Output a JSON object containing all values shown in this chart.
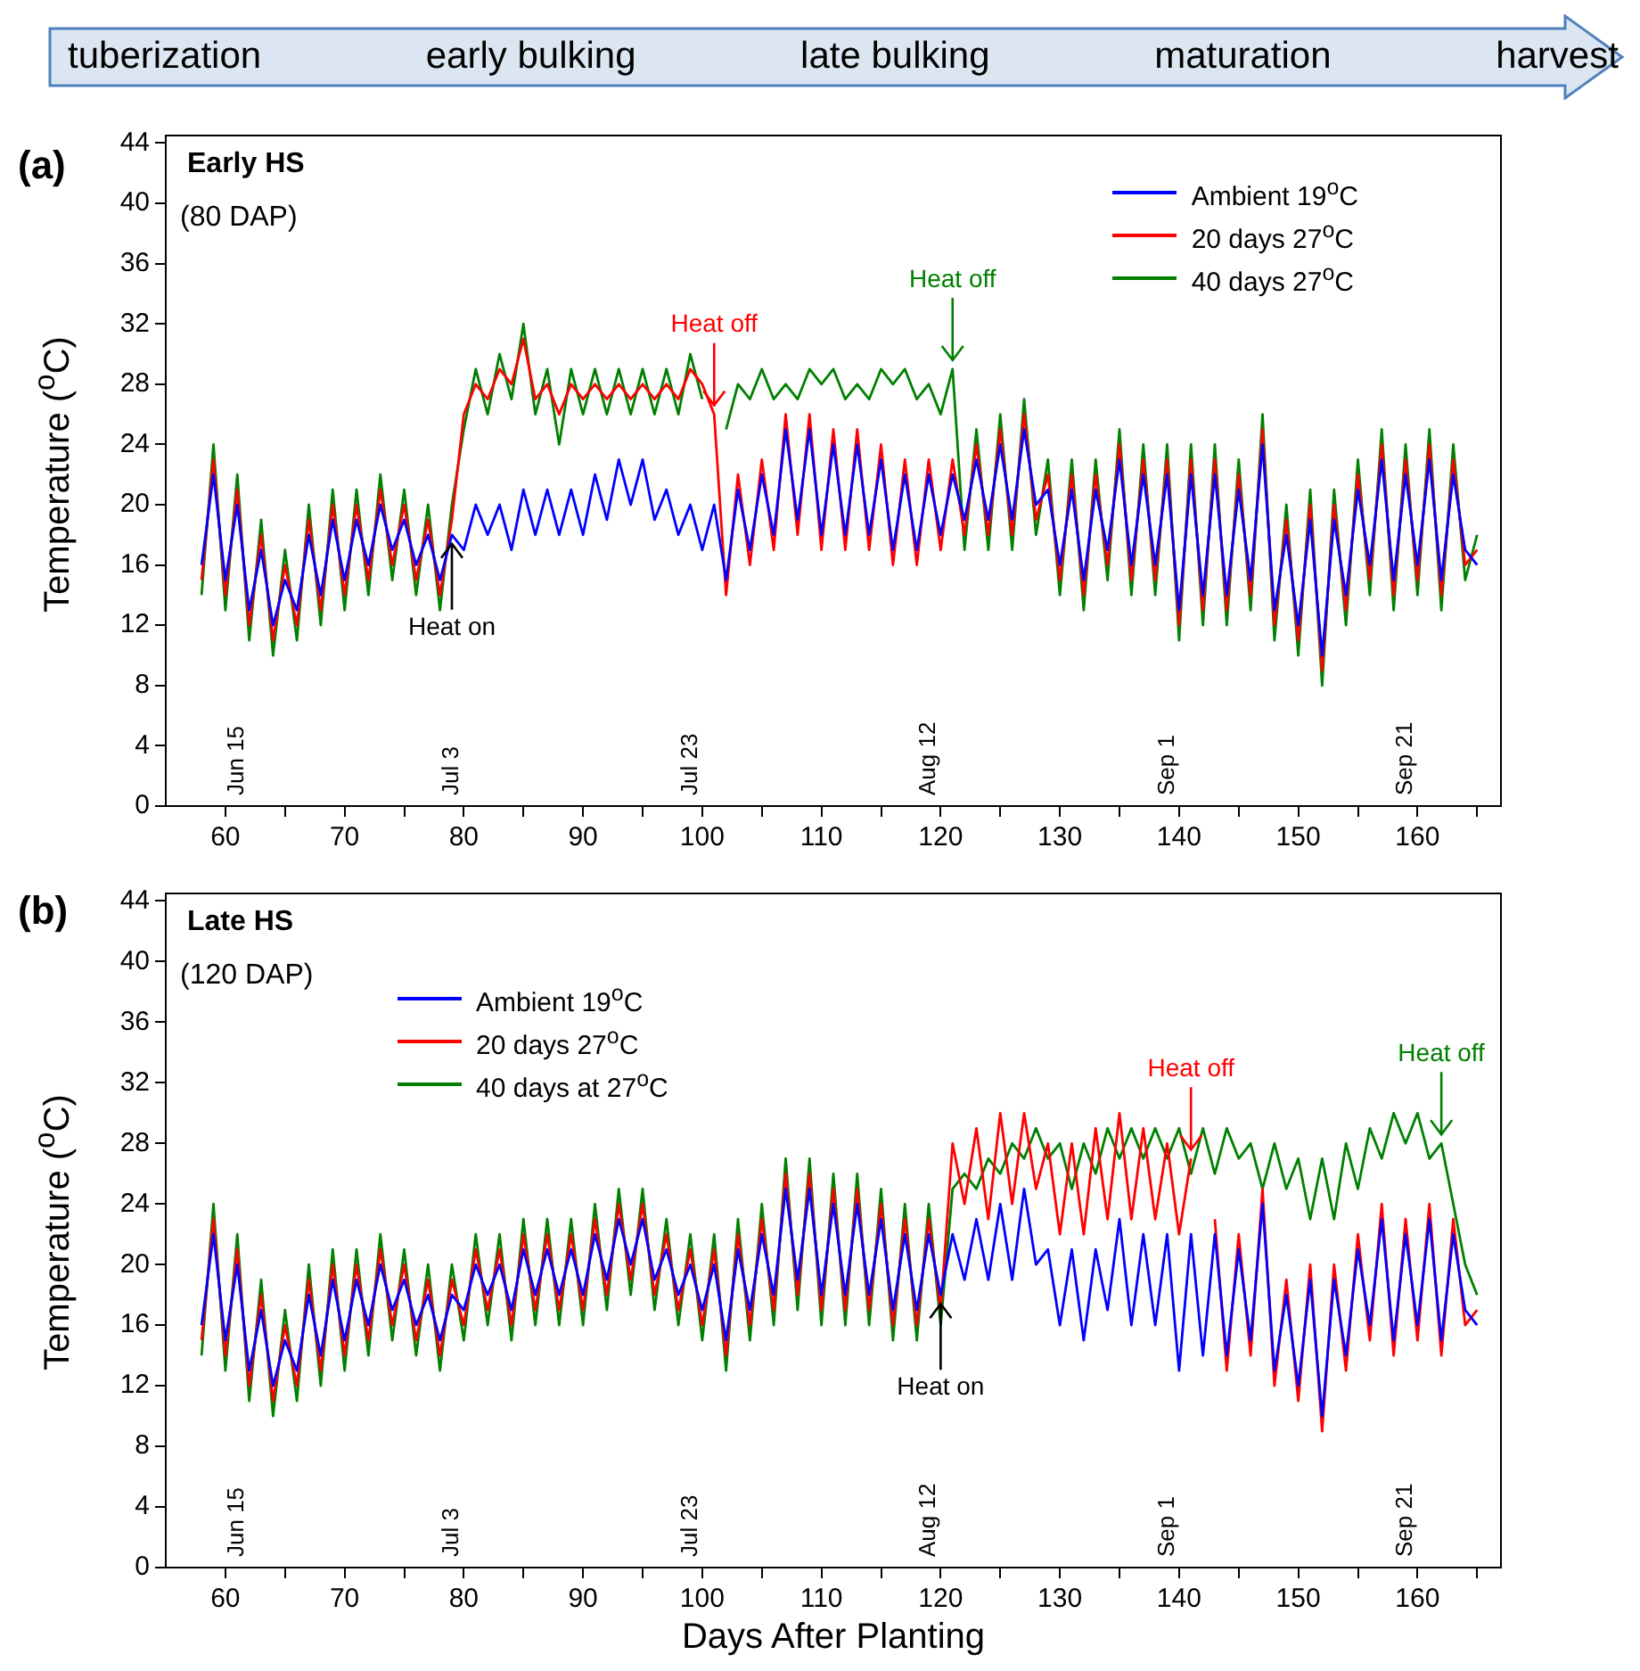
{
  "chart_data": [
    {
      "type": "other",
      "annotations": [
        "tuberization",
        "early bulking",
        "late bulking",
        "maturation",
        "harvest"
      ]
    },
    {
      "type": "line",
      "title": "Early HS",
      "subtitle": "(80 DAP)",
      "ylabel": "Temperature ($^{o}$C)",
      "legend": "top right",
      "x": [
        58,
        59,
        60,
        61,
        62,
        63,
        64,
        65,
        66,
        67,
        68,
        69,
        70,
        71,
        72,
        73,
        74,
        75,
        76,
        77,
        78,
        79,
        80,
        81,
        82,
        83,
        84,
        85,
        86,
        87,
        88,
        89,
        90,
        91,
        92,
        93,
        94,
        95,
        96,
        97,
        98,
        99,
        100,
        101,
        102,
        103,
        104,
        105,
        106,
        107,
        108,
        109,
        110,
        111,
        112,
        113,
        114,
        115,
        116,
        117,
        118,
        119,
        120,
        121,
        122,
        123,
        124,
        125,
        126,
        127,
        128,
        129,
        130,
        131,
        132,
        133,
        134,
        135,
        136,
        137,
        138,
        139,
        140,
        141,
        142,
        143,
        144,
        145,
        146,
        147,
        148,
        149,
        150,
        151,
        152,
        153,
        154,
        155,
        156,
        157,
        158,
        159,
        160,
        161,
        162,
        163,
        164,
        165
      ],
      "xlim": [
        55,
        167
      ],
      "xticks": [
        60,
        {
          "value": 65,
          "label": null
        },
        70,
        {
          "value": 75,
          "label": null
        },
        80,
        {
          "value": 85,
          "label": null
        },
        90,
        {
          "value": 95,
          "label": null
        },
        100,
        {
          "value": 105,
          "label": null
        },
        110,
        {
          "value": 115,
          "label": null
        },
        120,
        {
          "value": 125,
          "label": null
        },
        130,
        {
          "value": 135,
          "label": null
        },
        140,
        {
          "value": 145,
          "label": null
        },
        150,
        {
          "value": 155,
          "label": null
        },
        160,
        {
          "value": 165,
          "label": null
        }
      ],
      "ylim": [
        0,
        44.5
      ],
      "yticks": [
        0,
        4,
        8,
        12,
        16,
        20,
        24,
        28,
        32,
        36,
        40,
        44
      ],
      "x2lim": [
        "--06-09",
        "--09-29"
      ],
      "x2ticks": [
        {
          "value": "--06-15",
          "label": "Jun 15"
        },
        {
          "value": "--07-03",
          "label": "Jul 3"
        },
        {
          "value": "--07-23",
          "label": "Jul 23"
        },
        {
          "value": "--08-12",
          "label": "Aug 12"
        },
        {
          "value": "--09-01",
          "label": "Sep 1"
        },
        {
          "value": "--09-21",
          "label": "Sep 21"
        }
      ],
      "annotations": [
        "(a)",
        {
          "text": "Heat on",
          "x": 79,
          "y": 18
        },
        {
          "text": "Heat off",
          "x": 101,
          "y": 26
        },
        {
          "text": "Heat off",
          "x": 121,
          "y": 29
        }
      ],
      "series": [
        {
          "name": "Ambient 19$^{o}$C",
          "color": "#0000ff",
          "values": [
            16,
            22,
            15,
            20,
            13,
            17,
            12,
            15,
            13,
            18,
            14,
            19,
            15,
            19,
            16,
            20,
            17,
            19,
            16,
            18,
            15,
            18,
            17,
            20,
            18,
            20,
            17,
            21,
            18,
            21,
            18,
            21,
            18,
            22,
            19,
            23,
            20,
            23,
            19,
            21,
            18,
            20,
            17,
            20,
            15,
            21,
            17,
            22,
            18,
            25,
            19,
            25,
            18,
            24,
            18,
            24,
            18,
            23,
            17,
            22,
            17,
            22,
            18,
            22,
            19,
            23,
            19,
            24,
            19,
            25,
            20,
            21,
            16,
            21,
            15,
            21,
            17,
            23,
            16,
            22,
            16,
            22,
            13,
            22,
            14,
            22,
            14,
            21,
            15,
            24,
            13,
            18,
            12,
            19,
            10,
            19,
            14,
            21,
            16,
            23,
            15,
            22,
            16,
            23,
            15,
            22,
            17,
            16
          ]
        },
        {
          "name": "20 days 27$^{o}$C",
          "color": "#ff0000",
          "values": [
            15,
            23,
            14,
            21,
            12,
            18,
            11,
            16,
            12,
            19,
            13,
            20,
            14,
            20,
            15,
            21,
            16,
            20,
            15,
            19,
            14,
            19,
            26,
            28,
            27,
            29,
            28,
            31,
            27,
            28,
            26,
            28,
            27,
            28,
            27,
            28,
            27,
            28,
            27,
            28,
            27,
            29,
            28,
            26,
            14,
            22,
            16,
            23,
            17,
            26,
            18,
            26,
            17,
            25,
            17,
            25,
            17,
            24,
            16,
            23,
            16,
            23,
            17,
            23,
            18,
            24,
            18,
            25,
            18,
            26,
            19,
            22,
            15,
            22,
            14,
            22,
            16,
            24,
            15,
            23,
            15,
            23,
            12,
            23,
            13,
            23,
            13,
            22,
            14,
            25,
            12,
            19,
            11,
            20,
            9,
            20,
            13,
            22,
            15,
            24,
            14,
            23,
            15,
            24,
            14,
            23,
            16,
            17
          ]
        },
        {
          "name": "40 days 27$^{o}$C",
          "color": "#008000",
          "values": [
            14,
            24,
            13,
            22,
            11,
            19,
            10,
            17,
            11,
            20,
            12,
            21,
            13,
            21,
            14,
            22,
            15,
            21,
            14,
            20,
            13,
            20,
            25,
            29,
            26,
            30,
            27,
            32,
            26,
            29,
            24,
            29,
            26,
            29,
            26,
            29,
            26,
            29,
            26,
            29,
            26,
            30,
            27,
            null,
            25,
            28,
            27,
            29,
            27,
            28,
            27,
            29,
            28,
            29,
            27,
            28,
            27,
            29,
            28,
            29,
            27,
            28,
            26,
            29,
            17,
            25,
            17,
            26,
            17,
            27,
            18,
            23,
            14,
            23,
            13,
            23,
            15,
            25,
            14,
            24,
            14,
            24,
            11,
            24,
            12,
            24,
            12,
            23,
            13,
            26,
            11,
            20,
            10,
            21,
            8,
            21,
            12,
            23,
            14,
            25,
            13,
            24,
            14,
            25,
            13,
            24,
            15,
            18
          ]
        }
      ]
    },
    {
      "type": "line",
      "title": "Late HS",
      "subtitle": "(120 DAP)",
      "ylabel": "Temperature ($^{o}$C)",
      "xlabel": "Days After Planting",
      "legend": "top left",
      "x": [
        58,
        59,
        60,
        61,
        62,
        63,
        64,
        65,
        66,
        67,
        68,
        69,
        70,
        71,
        72,
        73,
        74,
        75,
        76,
        77,
        78,
        79,
        80,
        81,
        82,
        83,
        84,
        85,
        86,
        87,
        88,
        89,
        90,
        91,
        92,
        93,
        94,
        95,
        96,
        97,
        98,
        99,
        100,
        101,
        102,
        103,
        104,
        105,
        106,
        107,
        108,
        109,
        110,
        111,
        112,
        113,
        114,
        115,
        116,
        117,
        118,
        119,
        120,
        121,
        122,
        123,
        124,
        125,
        126,
        127,
        128,
        129,
        130,
        131,
        132,
        133,
        134,
        135,
        136,
        137,
        138,
        139,
        140,
        141,
        142,
        143,
        144,
        145,
        146,
        147,
        148,
        149,
        150,
        151,
        152,
        153,
        154,
        155,
        156,
        157,
        158,
        159,
        160,
        161,
        162,
        163,
        164,
        165
      ],
      "xlim": [
        55,
        167
      ],
      "xticks": [
        60,
        {
          "value": 65,
          "label": null
        },
        70,
        {
          "value": 75,
          "label": null
        },
        80,
        {
          "value": 85,
          "label": null
        },
        90,
        {
          "value": 95,
          "label": null
        },
        100,
        {
          "value": 105,
          "label": null
        },
        110,
        {
          "value": 115,
          "label": null
        },
        120,
        {
          "value": 125,
          "label": null
        },
        130,
        {
          "value": 135,
          "label": null
        },
        140,
        {
          "value": 145,
          "label": null
        },
        150,
        {
          "value": 155,
          "label": null
        },
        160,
        {
          "value": 165,
          "label": null
        }
      ],
      "ylim": [
        0,
        44.5
      ],
      "yticks": [
        0,
        4,
        8,
        12,
        16,
        20,
        24,
        28,
        32,
        36,
        40,
        44
      ],
      "x2lim": [
        "--06-09",
        "--09-29"
      ],
      "x2ticks": [
        {
          "value": "--06-15",
          "label": "Jun 15"
        },
        {
          "value": "--07-03",
          "label": "Jul 3"
        },
        {
          "value": "--07-23",
          "label": "Jul 23"
        },
        {
          "value": "--08-12",
          "label": "Aug 12"
        },
        {
          "value": "--09-01",
          "label": "Sep 1"
        },
        {
          "value": "--09-21",
          "label": "Sep 21"
        }
      ],
      "annotations": [
        "(b)",
        {
          "text": "Heat on",
          "x": 120,
          "y": 18
        },
        {
          "text": "Heat off",
          "x": 141,
          "y": 27
        },
        {
          "text": "Heat off",
          "x": 162,
          "y": 28
        }
      ],
      "series": [
        {
          "name": "Ambient 19$^{o}$C",
          "color": "#0000ff",
          "values": [
            16,
            22,
            15,
            20,
            13,
            17,
            12,
            15,
            13,
            18,
            14,
            19,
            15,
            19,
            16,
            20,
            17,
            19,
            16,
            18,
            15,
            18,
            17,
            20,
            18,
            20,
            17,
            21,
            18,
            21,
            18,
            21,
            18,
            22,
            19,
            23,
            20,
            23,
            19,
            21,
            18,
            20,
            17,
            20,
            15,
            21,
            17,
            22,
            18,
            25,
            19,
            25,
            18,
            24,
            18,
            24,
            18,
            23,
            17,
            22,
            17,
            22,
            18,
            22,
            19,
            23,
            19,
            24,
            19,
            25,
            20,
            21,
            16,
            21,
            15,
            21,
            17,
            23,
            16,
            22,
            16,
            22,
            13,
            22,
            14,
            22,
            14,
            21,
            15,
            24,
            13,
            18,
            12,
            19,
            10,
            19,
            14,
            21,
            16,
            23,
            15,
            22,
            16,
            23,
            15,
            22,
            17,
            16
          ]
        },
        {
          "name": "20 days 27$^{o}$C",
          "color": "#ff0000",
          "values": [
            15,
            23,
            14,
            21,
            12,
            18,
            11,
            16,
            12,
            19,
            13,
            20,
            14,
            20,
            15,
            21,
            16,
            20,
            15,
            19,
            14,
            19,
            16,
            21,
            17,
            21,
            16,
            22,
            17,
            22,
            17,
            22,
            17,
            23,
            18,
            24,
            19,
            24,
            18,
            22,
            17,
            21,
            16,
            21,
            14,
            22,
            16,
            23,
            17,
            26,
            18,
            26,
            17,
            25,
            17,
            25,
            17,
            24,
            16,
            23,
            16,
            23,
            17,
            28,
            24,
            29,
            23,
            30,
            24,
            30,
            25,
            28,
            22,
            28,
            22,
            29,
            23,
            30,
            23,
            29,
            23,
            28,
            22,
            27,
            null,
            23,
            13,
            22,
            14,
            25,
            12,
            19,
            11,
            20,
            9,
            20,
            13,
            22,
            15,
            24,
            14,
            23,
            15,
            24,
            14,
            23,
            16,
            17
          ]
        },
        {
          "name": "40 days at 27$^{o}$C",
          "color": "#008000",
          "values": [
            14,
            24,
            13,
            22,
            11,
            19,
            10,
            17,
            11,
            20,
            12,
            21,
            13,
            21,
            14,
            22,
            15,
            21,
            14,
            20,
            13,
            20,
            15,
            22,
            16,
            22,
            15,
            23,
            16,
            23,
            16,
            23,
            16,
            24,
            17,
            25,
            18,
            25,
            17,
            23,
            16,
            22,
            15,
            22,
            13,
            23,
            15,
            24,
            16,
            27,
            17,
            27,
            16,
            26,
            16,
            26,
            16,
            25,
            15,
            24,
            15,
            24,
            16,
            25,
            26,
            25,
            27,
            26,
            28,
            27,
            29,
            27,
            28,
            25,
            28,
            26,
            29,
            27,
            29,
            27,
            29,
            27,
            29,
            26,
            29,
            26,
            29,
            27,
            28,
            25,
            28,
            25,
            27,
            23,
            27,
            23,
            28,
            25,
            29,
            27,
            30,
            28,
            30,
            27,
            28,
            24,
            20,
            18
          ]
        }
      ]
    }
  ]
}
